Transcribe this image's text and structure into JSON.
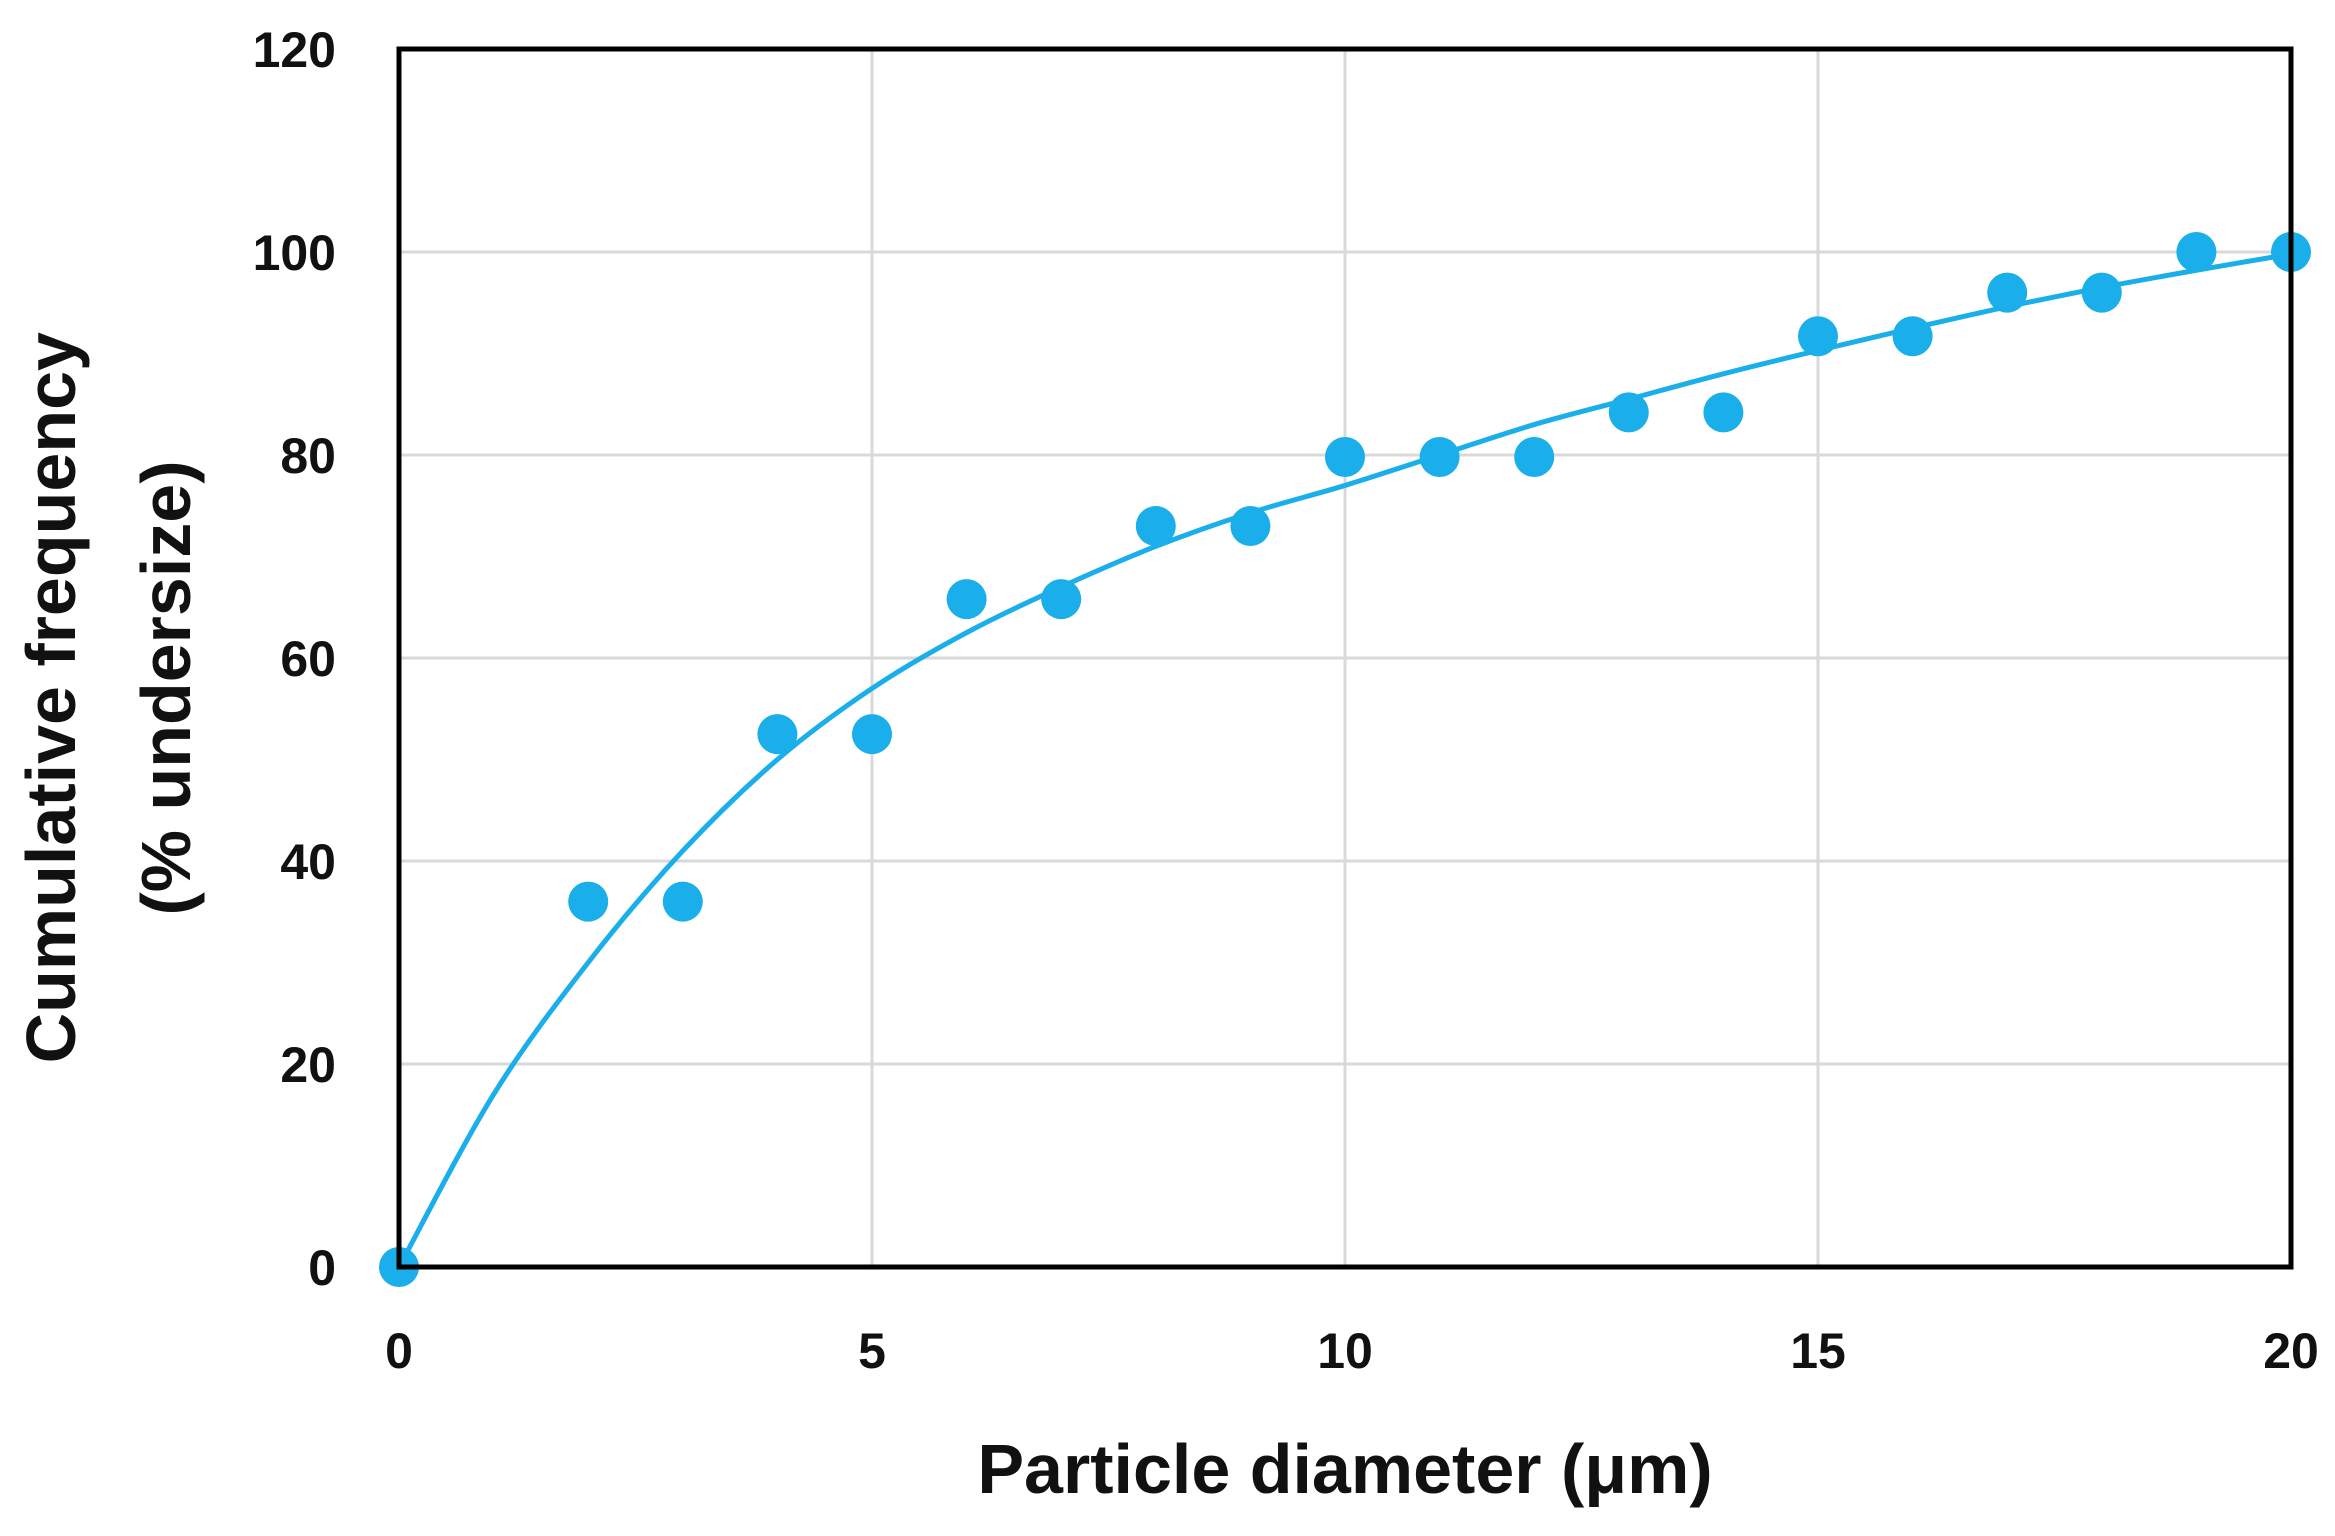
{
  "chart_data": {
    "type": "scatter",
    "title": "",
    "xlabel": "Particle diameter (μm)",
    "ylabel_lines": [
      "Cumulative frequency",
      "(% undersize)"
    ],
    "xlim": [
      0,
      20
    ],
    "ylim": [
      0,
      120
    ],
    "x_ticks": [
      0,
      5,
      10,
      15,
      20
    ],
    "y_ticks": [
      0,
      20,
      40,
      60,
      80,
      100,
      120
    ],
    "grid": true,
    "legend": "none",
    "colors": {
      "series": "#1aaeea",
      "grid": "#d9d9d9",
      "frame": "#000000",
      "text": "#111111"
    },
    "series": [
      {
        "marker": "circle",
        "x": [
          0,
          2,
          3,
          4,
          5,
          6,
          7,
          8,
          9,
          10,
          11,
          12,
          13,
          14,
          15,
          16,
          17,
          18,
          19,
          20
        ],
        "y": [
          0,
          36,
          36,
          52.5,
          52.5,
          65.8,
          65.8,
          73,
          73,
          79.8,
          79.8,
          79.8,
          84.2,
          84.2,
          91.7,
          91.7,
          96,
          96,
          100,
          100
        ]
      }
    ],
    "trendline": {
      "style": "smooth-curve",
      "x": [
        0,
        1,
        2,
        3,
        4,
        5,
        6,
        7,
        8,
        9,
        10,
        11,
        12,
        13,
        14,
        15,
        16,
        17,
        18,
        19,
        20
      ],
      "y": [
        0,
        17,
        30,
        41,
        50,
        57,
        62.5,
        67,
        71,
        74.3,
        77,
        80,
        83,
        85.5,
        88,
        90.3,
        92.5,
        94.6,
        96.5,
        98.2,
        99.8
      ]
    }
  }
}
